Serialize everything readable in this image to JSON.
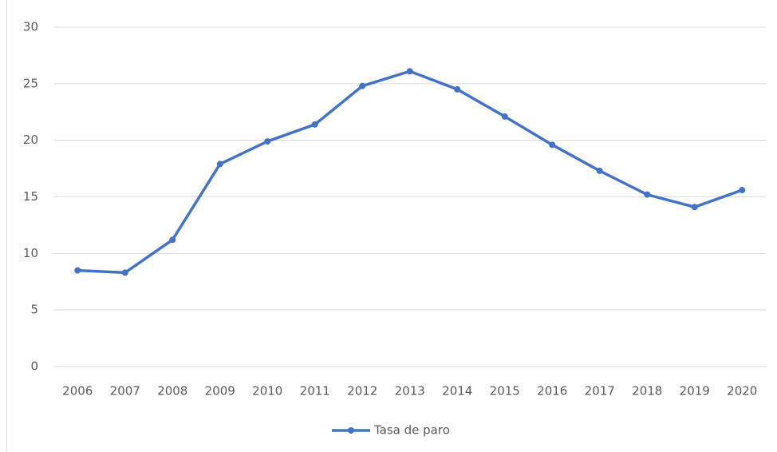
{
  "chart_data": {
    "type": "line",
    "categories": [
      "2006",
      "2007",
      "2008",
      "2009",
      "2010",
      "2011",
      "2012",
      "2013",
      "2014",
      "2015",
      "2016",
      "2017",
      "2018",
      "2019",
      "2020"
    ],
    "series": [
      {
        "name": "Tasa de paro",
        "color": "#4472c4",
        "values": [
          8.5,
          8.3,
          11.2,
          17.9,
          19.9,
          21.4,
          24.8,
          26.1,
          24.5,
          22.1,
          19.6,
          17.3,
          15.2,
          14.1,
          15.6
        ]
      }
    ],
    "ylim": [
      0,
      30
    ],
    "yticks": [
      0,
      5,
      10,
      15,
      20,
      25,
      30
    ],
    "grid": true,
    "legend": "bottom"
  }
}
